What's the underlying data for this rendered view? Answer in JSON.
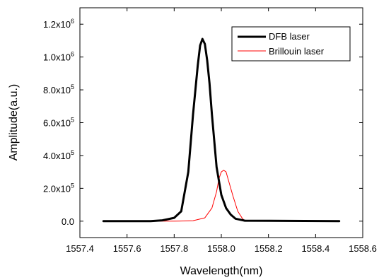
{
  "chart_data": {
    "type": "line",
    "xlabel": "Wavelength(nm)",
    "ylabel": "Amplitude(a.u.)",
    "xlim": [
      1557.4,
      1558.6
    ],
    "ylim": [
      -100000,
      1300000
    ],
    "x_ticks": [
      1557.4,
      1557.6,
      1557.8,
      1558.0,
      1558.2,
      1558.4,
      1558.6
    ],
    "x_tick_labels": [
      "1557.4",
      "1557.6",
      "1557.8",
      "1558.0",
      "1558.2",
      "1558.4",
      "1558.6"
    ],
    "y_ticks": [
      0,
      200000,
      400000,
      600000,
      800000,
      1000000,
      1200000
    ],
    "y_tick_labels": [
      {
        "mantissa": "0.0",
        "exp": ""
      },
      {
        "mantissa": "2.0x10",
        "exp": "5"
      },
      {
        "mantissa": "4.0x10",
        "exp": "5"
      },
      {
        "mantissa": "6.0x10",
        "exp": "5"
      },
      {
        "mantissa": "8.0x10",
        "exp": "5"
      },
      {
        "mantissa": "1.0x10",
        "exp": "6"
      },
      {
        "mantissa": "1.2x10",
        "exp": "6"
      }
    ],
    "grid": false,
    "legend_position": "top-right",
    "series": [
      {
        "name": "DFB laser",
        "color": "#000000",
        "style": "thick",
        "x": [
          1557.5,
          1557.7,
          1557.75,
          1557.8,
          1557.83,
          1557.86,
          1557.88,
          1557.9,
          1557.91,
          1557.92,
          1557.93,
          1557.94,
          1557.95,
          1557.96,
          1557.98,
          1558.0,
          1558.02,
          1558.04,
          1558.06,
          1558.1,
          1558.5
        ],
        "y": [
          0,
          0,
          5000,
          20000,
          60000,
          300000,
          650000,
          950000,
          1070000,
          1110000,
          1080000,
          980000,
          840000,
          650000,
          330000,
          160000,
          80000,
          40000,
          15000,
          3000,
          0
        ]
      },
      {
        "name": "Brillouin laser",
        "color": "#ff0000",
        "style": "thin",
        "x": [
          1557.5,
          1557.8,
          1557.88,
          1557.93,
          1557.96,
          1557.98,
          1557.99,
          1558.0,
          1558.01,
          1558.02,
          1558.03,
          1558.05,
          1558.07,
          1558.09,
          1558.1,
          1558.5
        ],
        "y": [
          0,
          0,
          3000,
          20000,
          80000,
          180000,
          260000,
          300000,
          310000,
          300000,
          250000,
          150000,
          60000,
          15000,
          3000,
          0
        ]
      }
    ]
  }
}
